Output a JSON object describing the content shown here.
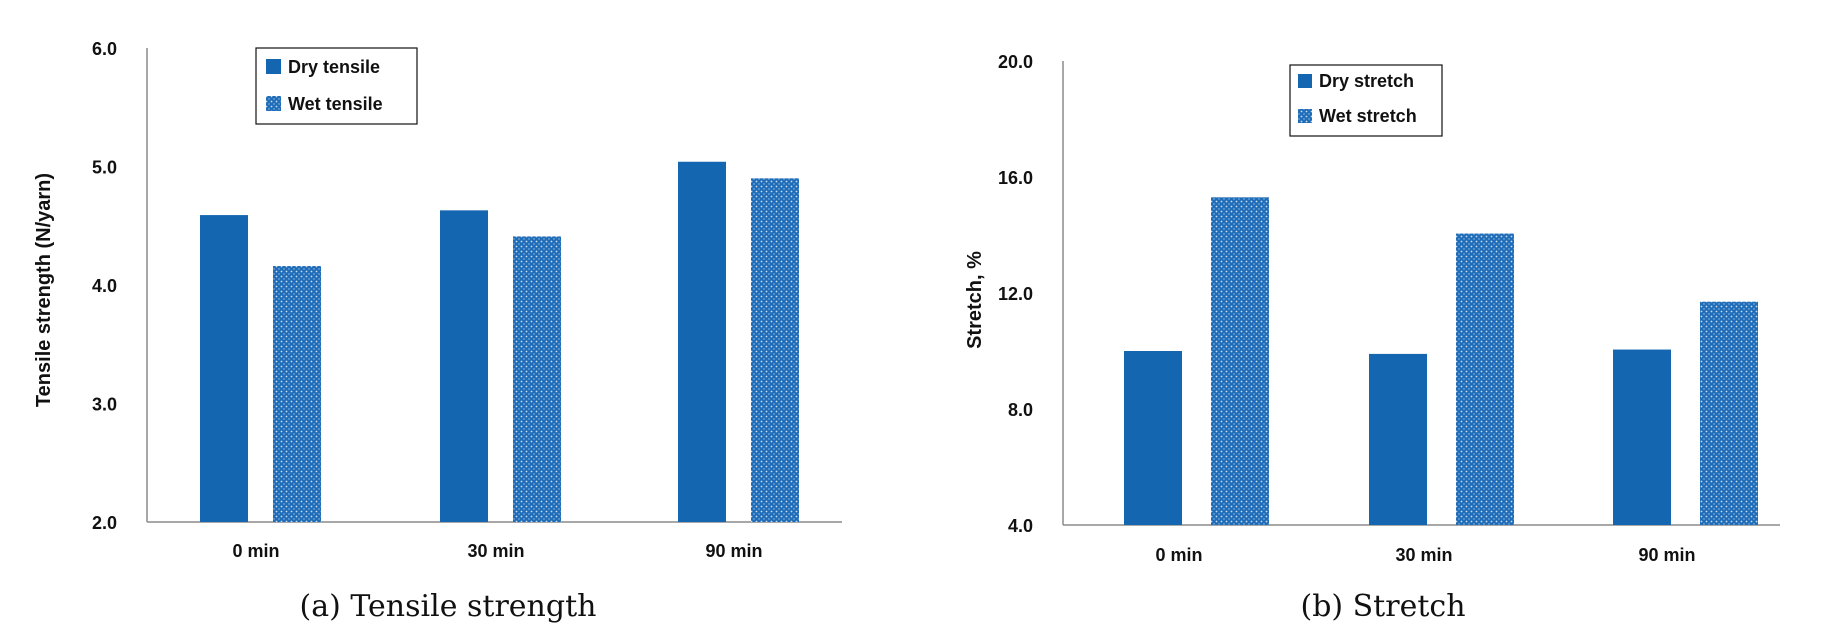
{
  "colors": {
    "dry": "#1566b0",
    "wet": "#2a72bd",
    "axis": "#8c8c8c"
  },
  "chart_data": [
    {
      "type": "bar",
      "caption": "(a) Tensile strength",
      "ylabel": "Tensile strength (N/yarn)",
      "xlabel": "",
      "categories": [
        "0 min",
        "30 min",
        "90 min"
      ],
      "ylim": [
        2.0,
        6.0
      ],
      "yticks": [
        "2.0",
        "3.0",
        "4.0",
        "5.0",
        "6.0"
      ],
      "ytick_values": [
        2.0,
        3.0,
        4.0,
        5.0,
        6.0
      ],
      "grid": false,
      "legend_position": "top-left",
      "series": [
        {
          "name": "Dry tensile",
          "pattern": "solid",
          "values": [
            4.59,
            4.63,
            5.04
          ]
        },
        {
          "name": "Wet tensile",
          "pattern": "dotted",
          "values": [
            4.16,
            4.41,
            4.9
          ]
        }
      ]
    },
    {
      "type": "bar",
      "caption": "(b) Stretch",
      "ylabel": "Stretch, %",
      "xlabel": "",
      "categories": [
        "0 min",
        "30 min",
        "90 min"
      ],
      "ylim": [
        4.0,
        20.0
      ],
      "yticks": [
        "4.0",
        "8.0",
        "12.0",
        "16.0",
        "20.0"
      ],
      "ytick_values": [
        4.0,
        8.0,
        12.0,
        16.0,
        20.0
      ],
      "grid": false,
      "legend_position": "top-left",
      "series": [
        {
          "name": "Dry stretch",
          "pattern": "solid",
          "values": [
            10.0,
            9.9,
            10.05
          ]
        },
        {
          "name": "Wet stretch",
          "pattern": "dotted",
          "values": [
            15.3,
            14.05,
            11.7
          ]
        }
      ]
    }
  ]
}
